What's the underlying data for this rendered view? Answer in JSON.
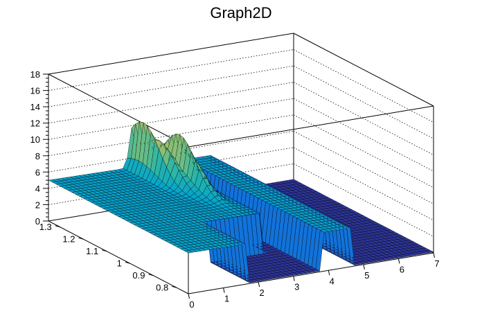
{
  "chart_data": {
    "type": "surface",
    "title": "Graph2D",
    "x_ticks": [
      "0",
      "1",
      "2",
      "3",
      "4",
      "5",
      "6",
      "7"
    ],
    "y_ticks": [
      "0.8",
      "0.9",
      "1",
      "1.1",
      "1.2",
      "1.3"
    ],
    "z_ticks": [
      "0",
      "2",
      "4",
      "6",
      "8",
      "10",
      "12",
      "14",
      "16",
      "18"
    ],
    "xlim": [
      0,
      7
    ],
    "ylim": [
      0.75,
      1.35
    ],
    "zlim": [
      0,
      18
    ],
    "grid": true,
    "colormap": [
      "#352a87",
      "#0f5cdd",
      "#1481d6",
      "#06a4ca",
      "#2eb7a4",
      "#87bf77",
      "#d1bb59",
      "#fec832",
      "#f9fb0e"
    ],
    "surface_regions": [
      {
        "region": "x 0-1.7 (all y)",
        "z": 5.0
      },
      {
        "region": "x 1.7-3.3, y 0.75-0.92",
        "z": 0.1
      },
      {
        "region": "x 1.7-3.3, y 0.92-1.35",
        "z": 5.0
      },
      {
        "region": "x 3.3-3.8",
        "z": 0.1
      },
      {
        "region": "x 3.8-4.7",
        "z": 5.0
      },
      {
        "region": "x 4.7-7",
        "z": 0.1
      }
    ],
    "peak_ridge": [
      {
        "x": 2.4,
        "y": 1.3,
        "z": 11.5
      },
      {
        "x": 2.55,
        "y": 1.25,
        "z": 10.5
      },
      {
        "x": 2.75,
        "y": 1.2,
        "z": 11.0
      },
      {
        "x": 2.9,
        "y": 1.18,
        "z": 9.0
      },
      {
        "x": 3.05,
        "y": 1.25,
        "z": 10.0
      },
      {
        "x": 3.2,
        "y": 1.3,
        "z": 7.5
      }
    ]
  }
}
